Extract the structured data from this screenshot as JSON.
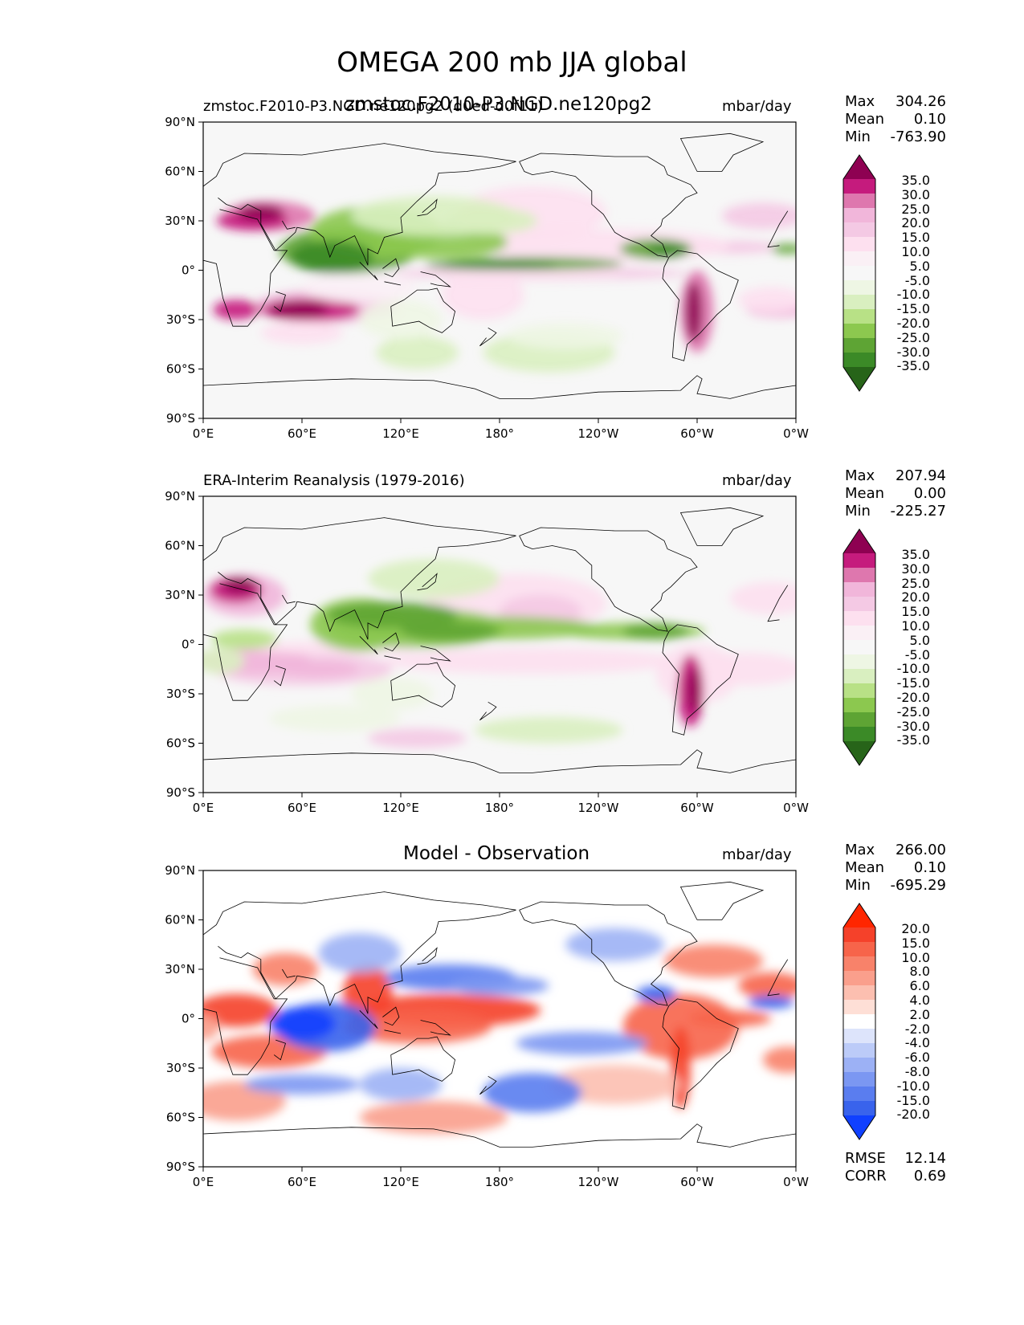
{
  "figure": {
    "title": "OMEGA 200 mb JJA global"
  },
  "chart_data": [
    {
      "type": "heatmap",
      "name": "model",
      "title_left": "zmstoc.F2010-P3.NGD.ne120pg2 (d0ed-d0f11)",
      "title_center": "zmstoc.F2010-P3.NGD.ne120pg2",
      "units": "mbar/day",
      "stats": {
        "max_label": "Max",
        "max": "304.26",
        "mean_label": "Mean",
        "mean": "0.10",
        "min_label": "Min",
        "min": "-763.90"
      },
      "xticks": [
        "0°E",
        "60°E",
        "120°E",
        "180°",
        "120°W",
        "60°W",
        "0°W"
      ],
      "yticks": [
        "90°N",
        "60°N",
        "30°N",
        "0°",
        "30°S",
        "60°S",
        "90°S"
      ],
      "xlim": [
        0,
        360
      ],
      "ylim": [
        -90,
        90
      ],
      "colorbar_levels": [
        "35.0",
        "30.0",
        "25.0",
        "20.0",
        "15.0",
        "10.0",
        "5.0",
        "-5.0",
        "-10.0",
        "-15.0",
        "-20.0",
        "-25.0",
        "-30.0",
        "-35.0"
      ],
      "colorbar_colors": [
        "#8e0152",
        "#c51b7d",
        "#de77ae",
        "#f1b6da",
        "#f4c9e4",
        "#fde0ef",
        "#faf0f5",
        "#f7f7f7",
        "#eef6e4",
        "#d9efc0",
        "#b8e186",
        "#8cc84f",
        "#5ea434",
        "#3b8a27",
        "#276419"
      ]
    },
    {
      "type": "heatmap",
      "name": "observation",
      "title_left": "ERA-Interim Reanalysis (1979-2016)",
      "units": "mbar/day",
      "stats": {
        "max_label": "Max",
        "max": "207.94",
        "mean_label": "Mean",
        "mean": "0.00",
        "min_label": "Min",
        "min": "-225.27"
      },
      "xticks": [
        "0°E",
        "60°E",
        "120°E",
        "180°",
        "120°W",
        "60°W",
        "0°W"
      ],
      "yticks": [
        "90°N",
        "60°N",
        "30°N",
        "0°",
        "30°S",
        "60°S",
        "90°S"
      ],
      "xlim": [
        0,
        360
      ],
      "ylim": [
        -90,
        90
      ],
      "colorbar_levels": [
        "35.0",
        "30.0",
        "25.0",
        "20.0",
        "15.0",
        "10.0",
        "5.0",
        "-5.0",
        "-10.0",
        "-15.0",
        "-20.0",
        "-25.0",
        "-30.0",
        "-35.0"
      ],
      "colorbar_colors": [
        "#8e0152",
        "#c51b7d",
        "#de77ae",
        "#f1b6da",
        "#f4c9e4",
        "#fde0ef",
        "#faf0f5",
        "#f7f7f7",
        "#eef6e4",
        "#d9efc0",
        "#b8e186",
        "#8cc84f",
        "#5ea434",
        "#3b8a27",
        "#276419"
      ]
    },
    {
      "type": "heatmap",
      "name": "difference",
      "title_center": "Model - Observation",
      "units": "mbar/day",
      "stats": {
        "max_label": "Max",
        "max": "266.00",
        "mean_label": "Mean",
        "mean": "0.10",
        "min_label": "Min",
        "min": "-695.29"
      },
      "metrics": {
        "rmse_label": "RMSE",
        "rmse": "12.14",
        "corr_label": "CORR",
        "corr": "0.69"
      },
      "xticks": [
        "0°E",
        "60°E",
        "120°E",
        "180°",
        "120°W",
        "60°W",
        "0°W"
      ],
      "yticks": [
        "90°N",
        "60°N",
        "30°N",
        "0°",
        "30°S",
        "60°S",
        "90°S"
      ],
      "xlim": [
        0,
        360
      ],
      "ylim": [
        -90,
        90
      ],
      "colorbar_levels": [
        "20.0",
        "15.0",
        "10.0",
        "8.0",
        "6.0",
        "4.0",
        "2.0",
        "-2.0",
        "-4.0",
        "-6.0",
        "-8.0",
        "-10.0",
        "-15.0",
        "-20.0"
      ],
      "colorbar_colors": [
        "#ff2600",
        "#f5412a",
        "#f7644a",
        "#f8826a",
        "#fa9f8c",
        "#fcbfb0",
        "#fedfd6",
        "#ffffff",
        "#dde4fb",
        "#bccbf8",
        "#9cb1f5",
        "#7b97f2",
        "#5a7def",
        "#3963ec",
        "#1040ff"
      ]
    }
  ]
}
